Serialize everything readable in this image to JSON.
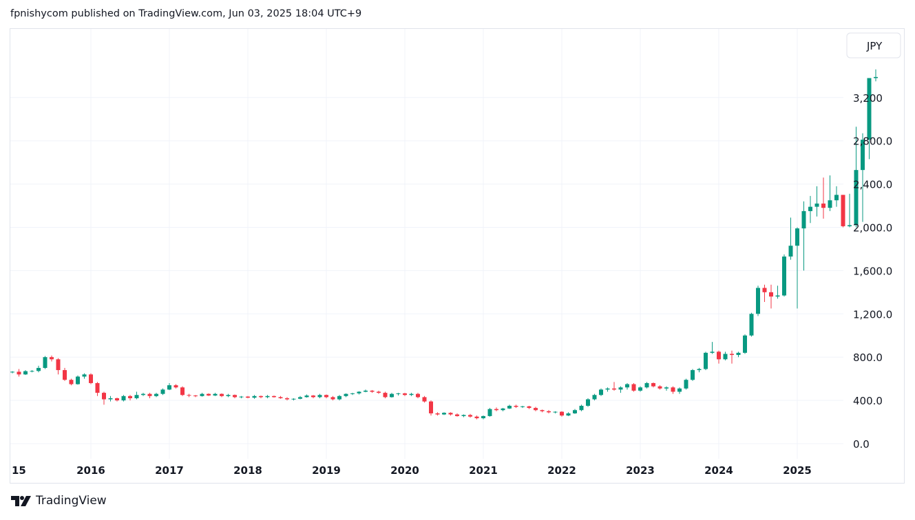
{
  "header": {
    "published": "fpnishycom published on TradingView.com, Jun 03, 2025 18:04 UTC+9"
  },
  "currency_label": "JPY",
  "footer": {
    "brand": "TradingView"
  },
  "colors": {
    "up": "#089981",
    "down": "#f23645",
    "grid": "#f0f3fa",
    "text": "#131722"
  },
  "chart_data": {
    "type": "candlestick",
    "interval": "monthly",
    "currency": "JPY",
    "grid": true,
    "ylim": [
      -50,
      3600
    ],
    "y_ticks": [
      "0.0",
      "400.0",
      "800.0",
      "1,200.0",
      "1,600.0",
      "2,000.0",
      "2,400.0",
      "2,800.0",
      "3,200"
    ],
    "x_ticks": [
      "15",
      "2016",
      "2017",
      "2018",
      "2019",
      "2020",
      "2021",
      "2022",
      "2023",
      "2024",
      "2025"
    ],
    "series": [
      {
        "columns": [
          "t",
          "o",
          "h",
          "l",
          "c"
        ],
        "values": [
          [
            0,
            660,
            670,
            650,
            665
          ],
          [
            1,
            665,
            690,
            620,
            640
          ],
          [
            2,
            640,
            680,
            635,
            670
          ],
          [
            3,
            670,
            680,
            660,
            672
          ],
          [
            4,
            672,
            720,
            660,
            700
          ],
          [
            5,
            700,
            810,
            690,
            800
          ],
          [
            6,
            800,
            815,
            760,
            780
          ],
          [
            7,
            780,
            790,
            640,
            680
          ],
          [
            8,
            680,
            700,
            580,
            590
          ],
          [
            9,
            590,
            600,
            540,
            550
          ],
          [
            10,
            550,
            630,
            545,
            620
          ],
          [
            11,
            620,
            650,
            600,
            640
          ],
          [
            12,
            640,
            650,
            550,
            560
          ],
          [
            13,
            560,
            570,
            440,
            470
          ],
          [
            14,
            470,
            480,
            360,
            410
          ],
          [
            15,
            410,
            440,
            390,
            420
          ],
          [
            16,
            420,
            425,
            390,
            400
          ],
          [
            17,
            400,
            450,
            390,
            440
          ],
          [
            18,
            440,
            450,
            400,
            420
          ],
          [
            19,
            420,
            480,
            410,
            450
          ],
          [
            20,
            450,
            470,
            440,
            460
          ],
          [
            21,
            460,
            470,
            420,
            440
          ],
          [
            22,
            440,
            470,
            430,
            460
          ],
          [
            23,
            460,
            510,
            450,
            500
          ],
          [
            24,
            500,
            560,
            495,
            540
          ],
          [
            25,
            540,
            550,
            510,
            520
          ],
          [
            26,
            520,
            530,
            440,
            450
          ],
          [
            27,
            450,
            460,
            430,
            445
          ],
          [
            28,
            445,
            450,
            430,
            440
          ],
          [
            29,
            440,
            470,
            435,
            460
          ],
          [
            30,
            460,
            465,
            440,
            445
          ],
          [
            31,
            445,
            470,
            440,
            460
          ],
          [
            32,
            460,
            465,
            430,
            440
          ],
          [
            33,
            440,
            460,
            430,
            450
          ],
          [
            34,
            450,
            455,
            420,
            430
          ],
          [
            35,
            430,
            440,
            420,
            435
          ],
          [
            36,
            435,
            440,
            420,
            425
          ],
          [
            37,
            425,
            450,
            415,
            440
          ],
          [
            38,
            440,
            445,
            420,
            430
          ],
          [
            39,
            430,
            450,
            420,
            440
          ],
          [
            40,
            440,
            445,
            425,
            430
          ],
          [
            41,
            430,
            440,
            415,
            420
          ],
          [
            42,
            420,
            430,
            400,
            410
          ],
          [
            43,
            410,
            420,
            400,
            415
          ],
          [
            44,
            415,
            440,
            410,
            430
          ],
          [
            45,
            430,
            455,
            425,
            445
          ],
          [
            46,
            445,
            450,
            420,
            430
          ],
          [
            47,
            430,
            460,
            420,
            450
          ],
          [
            48,
            450,
            455,
            420,
            430
          ],
          [
            49,
            430,
            440,
            400,
            410
          ],
          [
            50,
            410,
            450,
            400,
            440
          ],
          [
            51,
            440,
            465,
            430,
            460
          ],
          [
            52,
            460,
            470,
            450,
            465
          ],
          [
            53,
            465,
            485,
            455,
            480
          ],
          [
            54,
            480,
            500,
            475,
            490
          ],
          [
            55,
            490,
            495,
            470,
            480
          ],
          [
            56,
            480,
            490,
            460,
            470
          ],
          [
            57,
            470,
            480,
            420,
            430
          ],
          [
            58,
            430,
            470,
            425,
            460
          ],
          [
            59,
            460,
            470,
            445,
            465
          ],
          [
            60,
            465,
            470,
            440,
            450
          ],
          [
            61,
            450,
            470,
            440,
            460
          ],
          [
            62,
            460,
            470,
            420,
            430
          ],
          [
            63,
            430,
            440,
            380,
            390
          ],
          [
            64,
            390,
            400,
            260,
            280
          ],
          [
            65,
            280,
            290,
            260,
            270
          ],
          [
            66,
            270,
            290,
            265,
            285
          ],
          [
            67,
            285,
            290,
            260,
            270
          ],
          [
            68,
            270,
            280,
            250,
            255
          ],
          [
            69,
            255,
            270,
            245,
            265
          ],
          [
            70,
            265,
            275,
            240,
            250
          ],
          [
            71,
            250,
            260,
            225,
            235
          ],
          [
            72,
            235,
            260,
            225,
            255
          ],
          [
            73,
            255,
            330,
            250,
            320
          ],
          [
            74,
            320,
            335,
            300,
            310
          ],
          [
            75,
            310,
            330,
            300,
            325
          ],
          [
            76,
            325,
            360,
            320,
            350
          ],
          [
            77,
            350,
            360,
            330,
            340
          ],
          [
            78,
            340,
            350,
            330,
            345
          ],
          [
            79,
            345,
            350,
            320,
            330
          ],
          [
            80,
            330,
            340,
            300,
            310
          ],
          [
            81,
            310,
            315,
            290,
            300
          ],
          [
            82,
            300,
            310,
            280,
            290
          ],
          [
            83,
            290,
            300,
            280,
            295
          ],
          [
            84,
            295,
            300,
            250,
            260
          ],
          [
            85,
            260,
            290,
            255,
            280
          ],
          [
            86,
            280,
            320,
            275,
            310
          ],
          [
            87,
            310,
            360,
            300,
            350
          ],
          [
            88,
            350,
            420,
            340,
            410
          ],
          [
            89,
            410,
            460,
            400,
            450
          ],
          [
            90,
            450,
            510,
            440,
            500
          ],
          [
            91,
            500,
            520,
            480,
            510
          ],
          [
            92,
            510,
            570,
            490,
            500
          ],
          [
            93,
            500,
            530,
            470,
            520
          ],
          [
            94,
            520,
            560,
            500,
            550
          ],
          [
            95,
            550,
            560,
            480,
            490
          ],
          [
            96,
            490,
            530,
            480,
            520
          ],
          [
            97,
            520,
            570,
            510,
            560
          ],
          [
            98,
            560,
            565,
            520,
            530
          ],
          [
            99,
            530,
            540,
            500,
            510
          ],
          [
            100,
            510,
            530,
            490,
            520
          ],
          [
            101,
            520,
            530,
            460,
            480
          ],
          [
            102,
            480,
            520,
            460,
            510
          ],
          [
            103,
            510,
            600,
            500,
            590
          ],
          [
            104,
            590,
            690,
            580,
            680
          ],
          [
            105,
            680,
            700,
            660,
            690
          ],
          [
            106,
            690,
            850,
            680,
            840
          ],
          [
            107,
            840,
            940,
            830,
            850
          ],
          [
            108,
            850,
            860,
            740,
            780
          ],
          [
            109,
            780,
            850,
            770,
            830
          ],
          [
            110,
            830,
            860,
            740,
            820
          ],
          [
            111,
            820,
            850,
            800,
            840
          ],
          [
            112,
            840,
            1010,
            830,
            1000
          ],
          [
            113,
            1000,
            1210,
            990,
            1200
          ],
          [
            114,
            1200,
            1460,
            1180,
            1440
          ],
          [
            115,
            1440,
            1470,
            1310,
            1400
          ],
          [
            116,
            1400,
            1470,
            1250,
            1360
          ],
          [
            117,
            1360,
            1460,
            1340,
            1370
          ],
          [
            118,
            1370,
            1750,
            1360,
            1730
          ],
          [
            119,
            1730,
            2090,
            1700,
            1830
          ],
          [
            120,
            1830,
            2000,
            1250,
            1990
          ],
          [
            121,
            1990,
            2240,
            1600,
            2150
          ],
          [
            122,
            2150,
            2290,
            2040,
            2190
          ],
          [
            123,
            2190,
            2380,
            2100,
            2220
          ],
          [
            124,
            2220,
            2460,
            2080,
            2180
          ],
          [
            125,
            2180,
            2480,
            2150,
            2250
          ],
          [
            126,
            2250,
            2380,
            2190,
            2300
          ],
          [
            127,
            2300,
            2300,
            2000,
            2010
          ],
          [
            128,
            2010,
            2310,
            2000,
            2020
          ],
          [
            129,
            2020,
            2930,
            2000,
            2530
          ],
          [
            130,
            2530,
            2870,
            2050,
            2810
          ],
          [
            131,
            2810,
            3380,
            2630,
            3380
          ],
          [
            132,
            3380,
            3460,
            3350,
            3390
          ]
        ],
        "t0_label": "2015-01",
        "t_unit": "month"
      }
    ]
  }
}
